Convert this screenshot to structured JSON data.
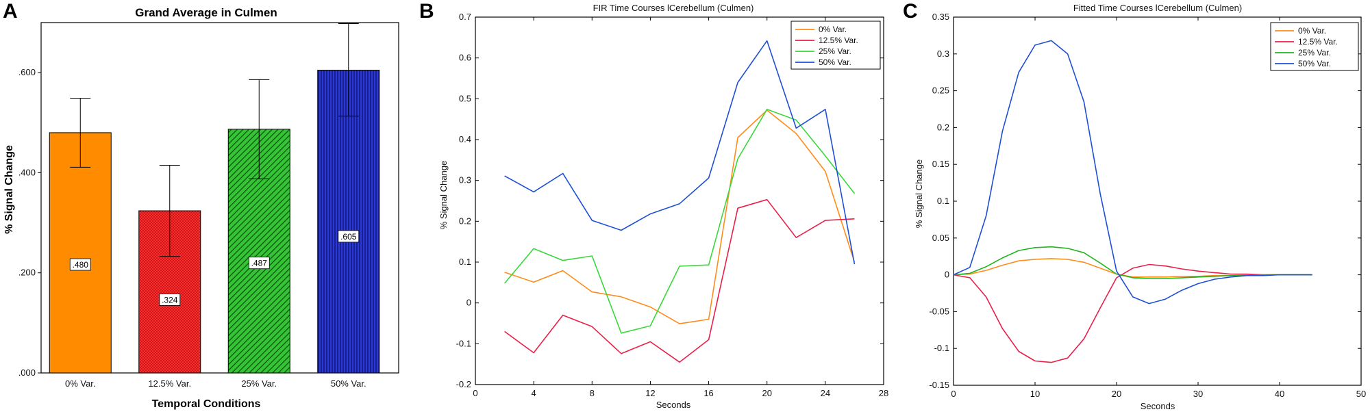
{
  "panels": {
    "a": {
      "letter": "A"
    },
    "b": {
      "letter": "B"
    },
    "c": {
      "letter": "C"
    }
  },
  "chart_data": [
    {
      "type": "bar",
      "title": "Grand Average in Culmen",
      "xlabel": "Temporal Conditions",
      "ylabel": "% Signal Change",
      "categories": [
        "0% Var.",
        "12.5% Var.",
        "25% Var.",
        "50% Var."
      ],
      "values": [
        0.48,
        0.324,
        0.487,
        0.605
      ],
      "data_labels": [
        ".480",
        ".324",
        ".487",
        ".605"
      ],
      "error_low": [
        0.411,
        0.233,
        0.388,
        0.513
      ],
      "error_high": [
        0.549,
        0.415,
        0.586,
        0.698
      ],
      "ylim": [
        0,
        0.7
      ],
      "yticks": [
        0,
        0.2,
        0.4,
        0.6
      ],
      "ytick_labels": [
        ".000",
        ".200",
        ".400",
        ".600"
      ],
      "colors": [
        "#ff8c00",
        "#ff2020",
        "#2db52d",
        "#2430c8"
      ],
      "fill_patterns": [
        "solid",
        "dots",
        "diagonal",
        "vertical"
      ],
      "grid": false,
      "legend": "none"
    },
    {
      "type": "line",
      "title": "FIR Time Courses lCerebellum (Culmen)",
      "xlabel": "Seconds",
      "ylabel": "% Signal Change",
      "x": [
        2,
        4,
        6,
        8,
        10,
        12,
        14,
        16,
        18,
        20,
        22,
        24,
        26
      ],
      "xlim": [
        0,
        28
      ],
      "ylim": [
        -0.2,
        0.7
      ],
      "xticks": [
        0,
        4,
        8,
        12,
        16,
        20,
        24,
        28
      ],
      "yticks": [
        -0.2,
        -0.1,
        0,
        0.1,
        0.2,
        0.3,
        0.4,
        0.5,
        0.6,
        0.7
      ],
      "ytick_labels": [
        "-0.2",
        "-0.1",
        "0",
        "0.1",
        "0.2",
        "0.3",
        "0.4",
        "0.5",
        "0.6",
        "0.7"
      ],
      "series": [
        {
          "name": "0% Var.",
          "color": "#ff8c1a",
          "values": [
            0.075,
            0.051,
            0.079,
            0.027,
            0.015,
            -0.01,
            -0.051,
            -0.04,
            0.405,
            0.472,
            0.415,
            0.322,
            0.1
          ]
        },
        {
          "name": "12.5% Var.",
          "color": "#e8204a",
          "values": [
            -0.07,
            -0.122,
            -0.03,
            -0.058,
            -0.124,
            -0.095,
            -0.145,
            -0.09,
            0.232,
            0.253,
            0.16,
            0.202,
            0.206
          ]
        },
        {
          "name": "25% Var.",
          "color": "#3ad83a",
          "values": [
            0.048,
            0.133,
            0.104,
            0.115,
            -0.074,
            -0.056,
            0.09,
            0.093,
            0.353,
            0.474,
            0.448,
            0.36,
            0.268
          ]
        },
        {
          "name": "50% Var.",
          "color": "#1e4fd6",
          "values": [
            0.311,
            0.272,
            0.317,
            0.202,
            0.178,
            0.218,
            0.243,
            0.306,
            0.54,
            0.642,
            0.428,
            0.474,
            0.095
          ]
        }
      ],
      "grid": false,
      "legend": "top-right"
    },
    {
      "type": "line",
      "title": "Fitted Time Courses lCerebellum (Culmen)",
      "xlabel": "Seconds",
      "ylabel": "% Signal Change",
      "x": [
        0,
        2,
        4,
        6,
        8,
        10,
        12,
        14,
        16,
        18,
        20,
        22,
        24,
        26,
        28,
        30,
        32,
        34,
        36,
        38,
        40,
        42,
        44
      ],
      "xlim": [
        0,
        50
      ],
      "ylim": [
        -0.15,
        0.35
      ],
      "xticks": [
        0,
        10,
        20,
        30,
        40,
        50
      ],
      "yticks": [
        -0.15,
        -0.1,
        -0.05,
        0,
        0.05,
        0.1,
        0.15,
        0.2,
        0.25,
        0.3,
        0.35
      ],
      "ytick_labels": [
        "-0.15",
        "-0.1",
        "-0.05",
        "0",
        "0.05",
        "0.1",
        "0.15",
        "0.2",
        "0.25",
        "0.3",
        "0.35"
      ],
      "series": [
        {
          "name": "0% Var.",
          "color": "#ff8c1a",
          "values": [
            0,
            0.001,
            0.006,
            0.013,
            0.019,
            0.021,
            0.022,
            0.021,
            0.017,
            0.009,
            0.001,
            -0.003,
            -0.003,
            -0.003,
            -0.002,
            -0.002,
            -0.001,
            -0.001,
            0,
            0,
            0,
            0,
            0
          ]
        },
        {
          "name": "12.5% Var.",
          "color": "#e8204a",
          "values": [
            0,
            -0.004,
            -0.03,
            -0.073,
            -0.104,
            -0.117,
            -0.119,
            -0.113,
            -0.087,
            -0.045,
            -0.004,
            0.009,
            0.014,
            0.012,
            0.008,
            0.005,
            0.003,
            0.001,
            0.001,
            0,
            0,
            0,
            0
          ]
        },
        {
          "name": "25% Var.",
          "color": "#22b522",
          "values": [
            0,
            0.002,
            0.011,
            0.023,
            0.033,
            0.037,
            0.038,
            0.036,
            0.03,
            0.016,
            0.001,
            -0.004,
            -0.005,
            -0.005,
            -0.004,
            -0.003,
            -0.002,
            -0.001,
            -0.001,
            0,
            0,
            0,
            0
          ]
        },
        {
          "name": "50% Var.",
          "color": "#1e4fd6",
          "values": [
            0,
            0.01,
            0.08,
            0.195,
            0.275,
            0.312,
            0.318,
            0.3,
            0.235,
            0.11,
            0.005,
            -0.03,
            -0.039,
            -0.033,
            -0.021,
            -0.012,
            -0.006,
            -0.003,
            -0.001,
            -0.001,
            0,
            0,
            0
          ]
        }
      ],
      "grid": false,
      "legend": "top-right"
    }
  ]
}
